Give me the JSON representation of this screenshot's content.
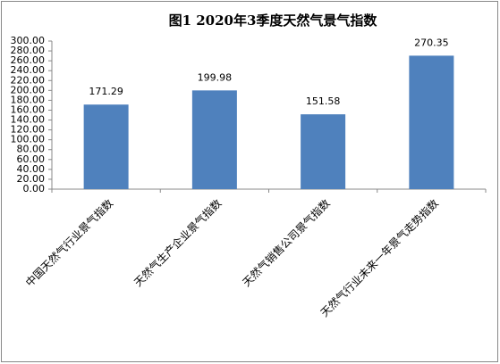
{
  "chart_data": {
    "type": "bar",
    "title": "图1   2020年3季度天然气景气指数",
    "categories": [
      "中国天然气行业景气指数",
      "天然气生产企业景气指数",
      "天然气销售公司景气指数",
      "天然气行业未来一年景气走势指数"
    ],
    "values": [
      171.29,
      199.98,
      151.58,
      270.35
    ],
    "color": "#4f81bd",
    "ylim": [
      0,
      300
    ],
    "yticks": [
      {
        "value": 0,
        "label": "0.00"
      },
      {
        "value": 20,
        "label": "20.00"
      },
      {
        "value": 40,
        "label": "40.00"
      },
      {
        "value": 60,
        "label": "60.00"
      },
      {
        "value": 80,
        "label": "80.00"
      },
      {
        "value": 100,
        "label": "100.00"
      },
      {
        "value": 120,
        "label": "120.00"
      },
      {
        "value": 140,
        "label": "140.00"
      },
      {
        "value": 160,
        "label": "160.00"
      },
      {
        "value": 180,
        "label": "180.00"
      },
      {
        "value": 200,
        "label": "200.00"
      },
      {
        "value": 220,
        "label": "220.00"
      },
      {
        "value": 240,
        "label": "240.00"
      },
      {
        "value": 260,
        "label": "260.00"
      },
      {
        "value": 280,
        "label": "280.00"
      },
      {
        "value": 300,
        "label": "300.00"
      }
    ]
  }
}
